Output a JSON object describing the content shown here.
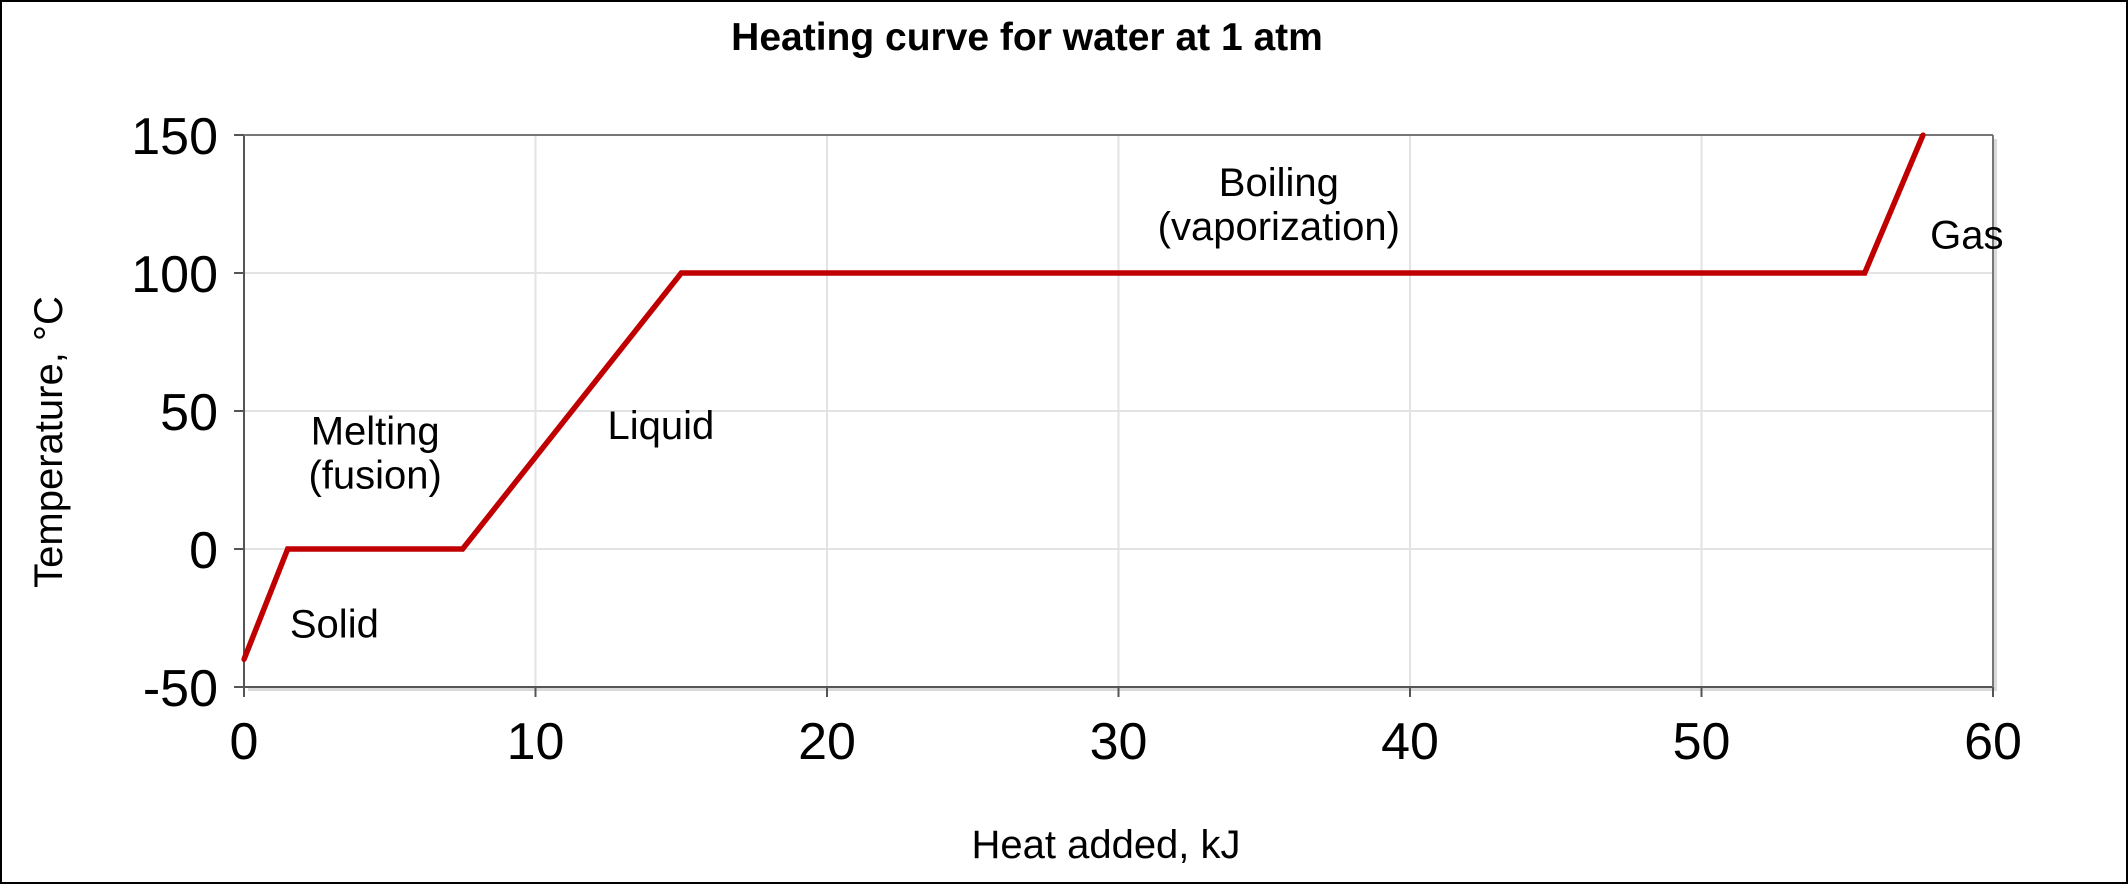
{
  "chart_data": {
    "type": "line",
    "title": "Heating curve for water at 1 atm",
    "xlabel": "Heat added, kJ",
    "ylabel": "Temperature, °C",
    "xlim": [
      0,
      60
    ],
    "ylim": [
      -50,
      150
    ],
    "xticks": [
      0,
      10,
      20,
      30,
      40,
      50,
      60
    ],
    "yticks": [
      -50,
      0,
      50,
      100,
      150
    ],
    "grid": true,
    "series": [
      {
        "color": "#c00000",
        "x": [
          0,
          1.5,
          7.5,
          15,
          55.6,
          57.6
        ],
        "y": [
          -40,
          0,
          0,
          100,
          100,
          150
        ]
      }
    ],
    "annotations": [
      {
        "lines": [
          "Solid"
        ],
        "x": 3.1,
        "y": -27
      },
      {
        "lines": [
          "Melting",
          "(fusion)"
        ],
        "x": 4.5,
        "y": 35
      },
      {
        "lines": [
          "Liquid"
        ],
        "x": 14.3,
        "y": 45
      },
      {
        "lines": [
          "Boiling",
          "(vaporization)"
        ],
        "x": 35.5,
        "y": 125
      },
      {
        "lines": [
          "Gas"
        ],
        "x": 59.1,
        "y": 114
      }
    ]
  }
}
